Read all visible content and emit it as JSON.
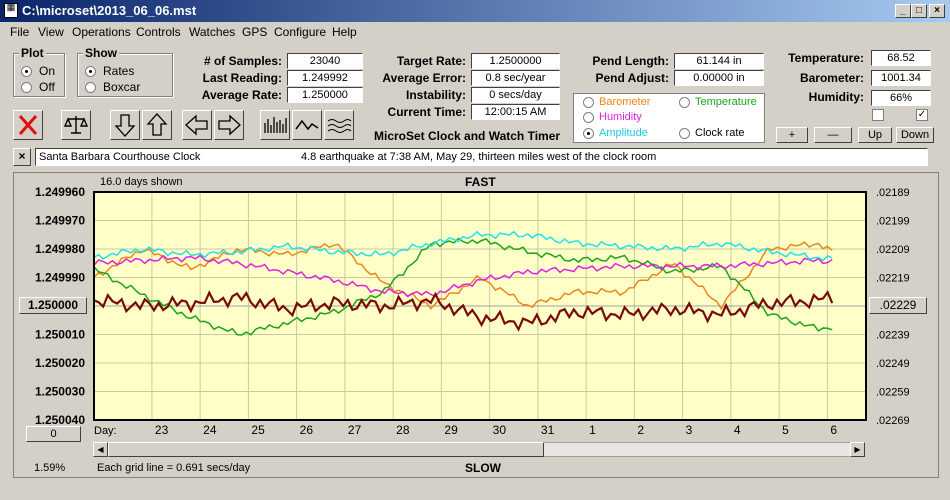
{
  "window": {
    "title": "C:\\microset\\2013_06_06.mst"
  },
  "menu": [
    "File",
    "View",
    "Operations",
    "Controls",
    "Watches",
    "GPS",
    "Configure",
    "Help"
  ],
  "plot_group": {
    "label": "Plot",
    "on": "On",
    "off": "Off",
    "selected": "On"
  },
  "show_group": {
    "label": "Show",
    "rates": "Rates",
    "boxcar": "Boxcar",
    "selected": "Rates"
  },
  "stats": {
    "samples_label": "# of Samples:",
    "samples": "23040",
    "last_label": "Last Reading:",
    "last": "1.249992",
    "avg_label": "Average Rate:",
    "avg": "1.250000",
    "target_label": "Target Rate:",
    "target": "1.2500000",
    "avgerr_label": "Average Error:",
    "avgerr": "0.8 sec/year",
    "instab_label": "Instability:",
    "instab": "0 secs/day",
    "time_label": "Current Time:",
    "time": "12:00:15 AM",
    "pendlen_label": "Pend Length:",
    "pendlen": "61.144 in",
    "pendadj_label": "Pend Adjust:",
    "pendadj": "0.00000 in",
    "temp_label": "Temperature:",
    "temp": "68.52",
    "baro_label": "Barometer:",
    "baro": "1001.34",
    "hum_label": "Humidity:",
    "hum": "66%"
  },
  "app_name": "MicroSet Clock and Watch Timer",
  "series_options": {
    "barometer": "Barometer",
    "temperature": "Temperature",
    "humidity": "Humidity",
    "amplitude": "Amplitude",
    "clock_rate": "Clock rate",
    "selected": "Amplitude"
  },
  "adjust_buttons": {
    "plus": "+",
    "minus": "—",
    "up": "Up",
    "down": "Down"
  },
  "note": {
    "clock": "Santa Barbara Courthouse Clock",
    "text": "4.8 earthquake at 7:38 AM, May 29, thirteen miles west of the clock room"
  },
  "colors": {
    "barometer": "#e8881a",
    "temperature": "#1aa51a",
    "humidity": "#e020e0",
    "amplitude": "#20e0f0",
    "clock_rate": "#7a0a0a",
    "plot_bg": "#ffffc8"
  },
  "plot": {
    "days_shown": "16.0 days shown",
    "fast": "FAST",
    "slow": "SLOW",
    "grid_note": "Each grid line = 0.691 secs/day",
    "percent": "1.59%",
    "left_ticks": [
      "1.249960",
      "1.249970",
      "1.249980",
      "1.249990",
      "1.250000",
      "1.250010",
      "1.250020",
      "1.250030",
      "1.250040"
    ],
    "right_ticks": [
      ".02189",
      ".02199",
      ".02209",
      ".02219",
      ".02229",
      ".02239",
      ".02249",
      ".02259",
      ".02269"
    ],
    "center_left": "1.250000",
    "center_right": ".02229",
    "zero_button": "0",
    "day_label": "Day:",
    "days": [
      "23",
      "24",
      "25",
      "26",
      "27",
      "28",
      "29",
      "30",
      "31",
      "1",
      "2",
      "3",
      "4",
      "5",
      "6"
    ]
  },
  "chart_data": {
    "type": "line",
    "x_unit": "day",
    "x": [
      0,
      1,
      2,
      3,
      4,
      5,
      6,
      7,
      8,
      9,
      10,
      11,
      12,
      13,
      14,
      15,
      16
    ],
    "ylim": [
      1.24996,
      1.25004
    ],
    "y2lim": [
      0.02189,
      0.02269
    ],
    "series": [
      {
        "name": "Clock rate",
        "values": [
          1.249998,
          1.25,
          1.249999,
          1.249997,
          1.250001,
          1.249999,
          1.25,
          1.249998,
          1.250004,
          1.250006,
          1.250002,
          1.250003,
          1.250001,
          1.250003,
          1.249999,
          1.249998,
          1.249994
        ]
      },
      {
        "name": "Amplitude",
        "values": [
          1.249983,
          1.24998,
          1.249982,
          1.249981,
          1.249979,
          1.249981,
          1.249982,
          1.249978,
          1.249975,
          1.249975,
          1.249978,
          1.249979,
          1.24998,
          1.249978,
          1.249981,
          1.249983,
          1.249985
        ]
      },
      {
        "name": "Temperature",
        "values": [
          1.249987,
          1.249996,
          1.250004,
          1.25001,
          1.250006,
          1.250002,
          1.249995,
          1.249978,
          1.249977,
          1.249981,
          1.249984,
          1.249983,
          1.249988,
          1.249986,
          1.250003,
          1.250008,
          1.250006
        ]
      },
      {
        "name": "Humidity",
        "values": [
          1.249985,
          1.249984,
          1.249983,
          1.249985,
          1.249988,
          1.249991,
          1.249995,
          1.249996,
          1.249991,
          1.249988,
          1.249987,
          1.249986,
          1.249986,
          1.249986,
          1.249985,
          1.249984,
          1.249985
        ]
      },
      {
        "name": "Barometer",
        "values": [
          1.24999,
          1.24998,
          1.249987,
          1.24998,
          1.249982,
          1.249978,
          1.249992,
          1.25,
          1.24999,
          1.25,
          1.249995,
          1.249995,
          1.249985,
          1.25,
          1.24998,
          1.249978,
          1.249988
        ]
      }
    ]
  }
}
